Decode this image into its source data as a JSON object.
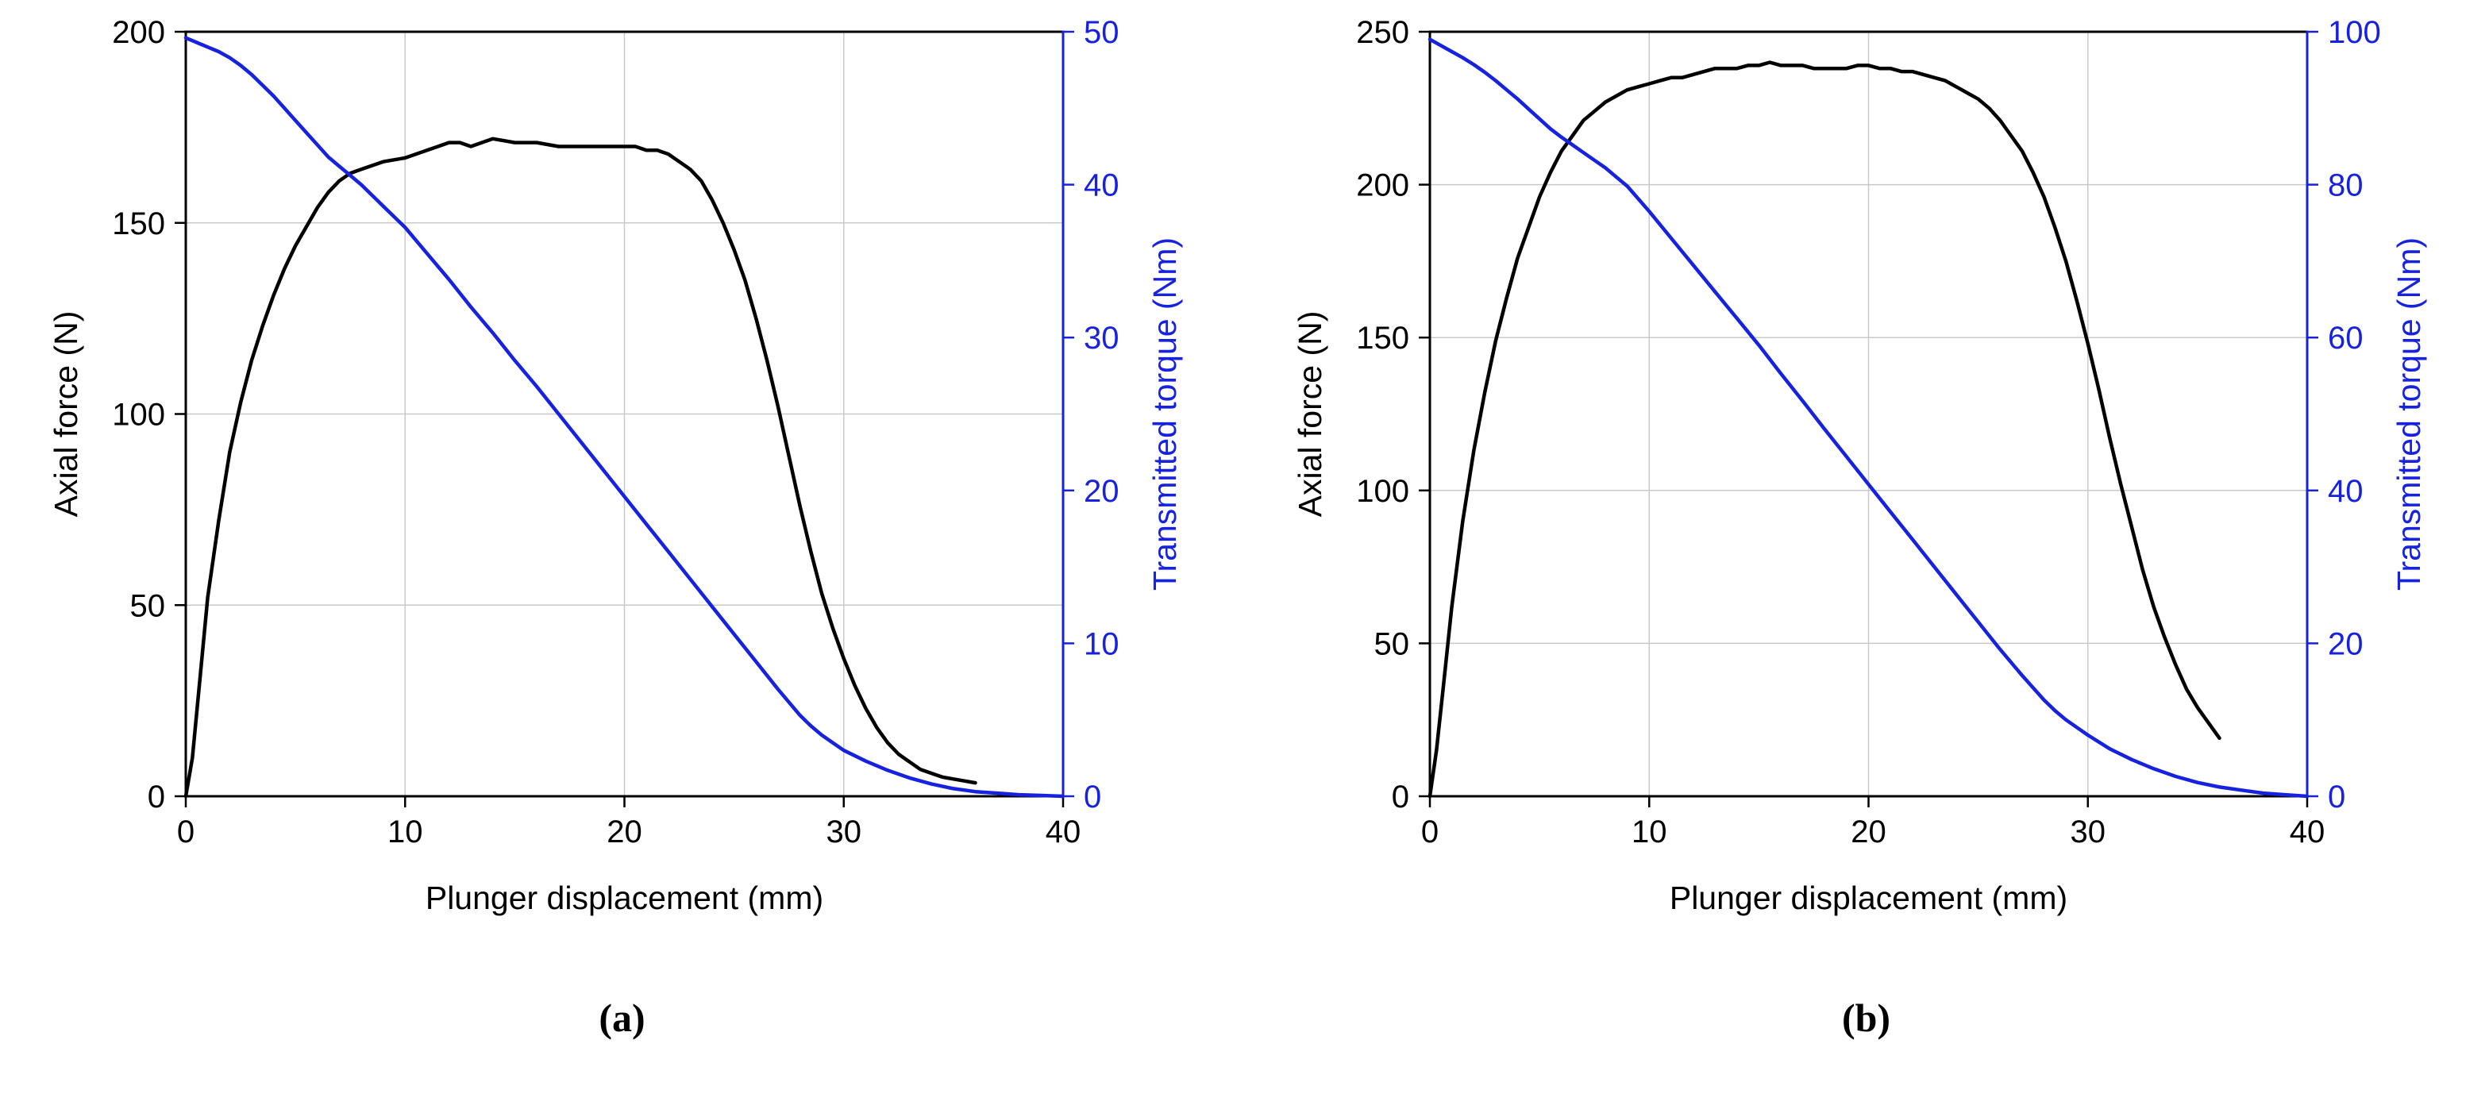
{
  "figure": {
    "background": "#ffffff",
    "grid_color": "#c9c9c9",
    "frame_color": "#000000"
  },
  "chart_data": [
    {
      "type": "line",
      "caption": "(a)",
      "title": "",
      "xlabel": "Plunger displacement (mm)",
      "ylabel_left": "Axial force (N)",
      "ylabel_right": "Transmitted torque (Nm)",
      "x_range": [
        0,
        40
      ],
      "x_ticks": [
        0,
        10,
        20,
        30,
        40
      ],
      "y_left_range": [
        0,
        200
      ],
      "y_left_ticks": [
        0,
        50,
        100,
        150,
        200
      ],
      "y_right_range": [
        0,
        50
      ],
      "y_right_ticks": [
        0,
        10,
        20,
        30,
        40,
        50
      ],
      "grid": true,
      "legend": "none",
      "colors": {
        "force": "#000000",
        "torque": "#1622e0",
        "grid": "#c9c9c9"
      },
      "series": [
        {
          "name": "Axial force",
          "axis": "left",
          "color": "#000000",
          "points": [
            [
              0,
              0
            ],
            [
              0.3,
              10
            ],
            [
              0.6,
              28
            ],
            [
              1,
              52
            ],
            [
              1.5,
              72
            ],
            [
              2,
              90
            ],
            [
              2.5,
              103
            ],
            [
              3,
              114
            ],
            [
              3.5,
              123
            ],
            [
              4,
              131
            ],
            [
              4.5,
              138
            ],
            [
              5,
              144
            ],
            [
              5.5,
              149
            ],
            [
              6,
              154
            ],
            [
              6.5,
              158
            ],
            [
              7,
              161
            ],
            [
              7.5,
              163
            ],
            [
              8,
              164
            ],
            [
              9,
              166
            ],
            [
              10,
              167
            ],
            [
              11,
              169
            ],
            [
              11.5,
              170
            ],
            [
              12,
              171
            ],
            [
              12.5,
              171
            ],
            [
              13,
              170
            ],
            [
              13.5,
              171
            ],
            [
              14,
              172
            ],
            [
              15,
              171
            ],
            [
              16,
              171
            ],
            [
              17,
              170
            ],
            [
              18,
              170
            ],
            [
              19,
              170
            ],
            [
              20,
              170
            ],
            [
              20.5,
              170
            ],
            [
              21,
              169
            ],
            [
              21.5,
              169
            ],
            [
              22,
              168
            ],
            [
              22.5,
              166
            ],
            [
              23,
              164
            ],
            [
              23.5,
              161
            ],
            [
              24,
              156
            ],
            [
              24.5,
              150
            ],
            [
              25,
              143
            ],
            [
              25.5,
              135
            ],
            [
              26,
              125
            ],
            [
              26.5,
              114
            ],
            [
              27,
              102
            ],
            [
              27.5,
              89
            ],
            [
              28,
              76
            ],
            [
              28.5,
              64
            ],
            [
              29,
              53
            ],
            [
              29.5,
              44
            ],
            [
              30,
              36
            ],
            [
              30.5,
              29
            ],
            [
              31,
              23
            ],
            [
              31.5,
              18
            ],
            [
              32,
              14
            ],
            [
              32.5,
              11
            ],
            [
              33,
              9
            ],
            [
              33.5,
              7
            ],
            [
              34,
              6
            ],
            [
              34.5,
              5
            ],
            [
              35,
              4.5
            ],
            [
              35.5,
              4
            ],
            [
              36,
              3.5
            ]
          ]
        },
        {
          "name": "Transmitted torque",
          "axis": "right",
          "color": "#1622e0",
          "points": [
            [
              0,
              49.6
            ],
            [
              0.5,
              49.3
            ],
            [
              1,
              49
            ],
            [
              1.5,
              48.7
            ],
            [
              2,
              48.3
            ],
            [
              2.5,
              47.8
            ],
            [
              3,
              47.2
            ],
            [
              3.5,
              46.5
            ],
            [
              4,
              45.8
            ],
            [
              4.5,
              45
            ],
            [
              5,
              44.2
            ],
            [
              5.5,
              43.4
            ],
            [
              6,
              42.6
            ],
            [
              6.5,
              41.8
            ],
            [
              7,
              41.2
            ],
            [
              7.5,
              40.6
            ],
            [
              8,
              40
            ],
            [
              9,
              38.6
            ],
            [
              10,
              37.2
            ],
            [
              11,
              35.5
            ],
            [
              12,
              33.8
            ],
            [
              13,
              32
            ],
            [
              14,
              30.3
            ],
            [
              15,
              28.5
            ],
            [
              16,
              26.8
            ],
            [
              17,
              25
            ],
            [
              18,
              23.2
            ],
            [
              19,
              21.4
            ],
            [
              20,
              19.6
            ],
            [
              21,
              17.8
            ],
            [
              22,
              16
            ],
            [
              23,
              14.2
            ],
            [
              24,
              12.4
            ],
            [
              25,
              10.6
            ],
            [
              26,
              8.8
            ],
            [
              27,
              7
            ],
            [
              28,
              5.3
            ],
            [
              28.5,
              4.6
            ],
            [
              29,
              4
            ],
            [
              29.5,
              3.5
            ],
            [
              30,
              3
            ],
            [
              31,
              2.3
            ],
            [
              32,
              1.7
            ],
            [
              33,
              1.2
            ],
            [
              34,
              0.8
            ],
            [
              35,
              0.5
            ],
            [
              36,
              0.3
            ],
            [
              37,
              0.2
            ],
            [
              38,
              0.1
            ],
            [
              39,
              0.05
            ],
            [
              40,
              0
            ]
          ]
        }
      ]
    },
    {
      "type": "line",
      "caption": "(b)",
      "title": "",
      "xlabel": "Plunger displacement (mm)",
      "ylabel_left": "Axial force (N)",
      "ylabel_right": "Transmitted torque (Nm)",
      "x_range": [
        0,
        40
      ],
      "x_ticks": [
        0,
        10,
        20,
        30,
        40
      ],
      "y_left_range": [
        0,
        250
      ],
      "y_left_ticks": [
        0,
        50,
        100,
        150,
        200,
        250
      ],
      "y_right_range": [
        0,
        100
      ],
      "y_right_ticks": [
        0,
        20,
        40,
        60,
        80,
        100
      ],
      "grid": true,
      "legend": "none",
      "colors": {
        "force": "#000000",
        "torque": "#1622e0",
        "grid": "#c9c9c9"
      },
      "series": [
        {
          "name": "Axial force",
          "axis": "left",
          "color": "#000000",
          "points": [
            [
              0,
              0
            ],
            [
              0.3,
              15
            ],
            [
              0.6,
              35
            ],
            [
              1,
              62
            ],
            [
              1.5,
              90
            ],
            [
              2,
              113
            ],
            [
              2.5,
              132
            ],
            [
              3,
              149
            ],
            [
              3.5,
              163
            ],
            [
              4,
              176
            ],
            [
              4.5,
              186
            ],
            [
              5,
              196
            ],
            [
              5.5,
              204
            ],
            [
              6,
              211
            ],
            [
              6.5,
              216
            ],
            [
              7,
              221
            ],
            [
              7.5,
              224
            ],
            [
              8,
              227
            ],
            [
              8.5,
              229
            ],
            [
              9,
              231
            ],
            [
              9.5,
              232
            ],
            [
              10,
              233
            ],
            [
              10.5,
              234
            ],
            [
              11,
              235
            ],
            [
              11.5,
              235
            ],
            [
              12,
              236
            ],
            [
              12.5,
              237
            ],
            [
              13,
              238
            ],
            [
              13.5,
              238
            ],
            [
              14,
              238
            ],
            [
              14.5,
              239
            ],
            [
              15,
              239
            ],
            [
              15.5,
              240
            ],
            [
              16,
              239
            ],
            [
              16.5,
              239
            ],
            [
              17,
              239
            ],
            [
              17.5,
              238
            ],
            [
              18,
              238
            ],
            [
              18.5,
              238
            ],
            [
              19,
              238
            ],
            [
              19.5,
              239
            ],
            [
              20,
              239
            ],
            [
              20.5,
              238
            ],
            [
              21,
              238
            ],
            [
              21.5,
              237
            ],
            [
              22,
              237
            ],
            [
              22.5,
              236
            ],
            [
              23,
              235
            ],
            [
              23.5,
              234
            ],
            [
              24,
              232
            ],
            [
              24.5,
              230
            ],
            [
              25,
              228
            ],
            [
              25.5,
              225
            ],
            [
              26,
              221
            ],
            [
              26.5,
              216
            ],
            [
              27,
              211
            ],
            [
              27.5,
              204
            ],
            [
              28,
              196
            ],
            [
              28.5,
              186
            ],
            [
              29,
              175
            ],
            [
              29.5,
              162
            ],
            [
              30,
              148
            ],
            [
              30.5,
              133
            ],
            [
              31,
              117
            ],
            [
              31.5,
              102
            ],
            [
              32,
              88
            ],
            [
              32.5,
              74
            ],
            [
              33,
              62
            ],
            [
              33.5,
              52
            ],
            [
              34,
              43
            ],
            [
              34.5,
              35
            ],
            [
              35,
              29
            ],
            [
              35.5,
              24
            ],
            [
              36,
              19
            ]
          ]
        },
        {
          "name": "Transmitted torque",
          "axis": "right",
          "color": "#1622e0",
          "points": [
            [
              0,
              99
            ],
            [
              0.5,
              98.2
            ],
            [
              1,
              97.4
            ],
            [
              1.5,
              96.6
            ],
            [
              2,
              95.7
            ],
            [
              2.5,
              94.7
            ],
            [
              3,
              93.6
            ],
            [
              3.5,
              92.4
            ],
            [
              4,
              91.2
            ],
            [
              4.5,
              89.9
            ],
            [
              5,
              88.6
            ],
            [
              5.5,
              87.3
            ],
            [
              6,
              86.2
            ],
            [
              6.5,
              85.2
            ],
            [
              7,
              84.2
            ],
            [
              7.5,
              83.2
            ],
            [
              8,
              82.2
            ],
            [
              9,
              79.8
            ],
            [
              10,
              76.5
            ],
            [
              11,
              73
            ],
            [
              12,
              69.5
            ],
            [
              13,
              66
            ],
            [
              14,
              62.5
            ],
            [
              15,
              59
            ],
            [
              16,
              55.3
            ],
            [
              17,
              51.7
            ],
            [
              18,
              48
            ],
            [
              19,
              44.4
            ],
            [
              20,
              40.8
            ],
            [
              21,
              37.2
            ],
            [
              22,
              33.6
            ],
            [
              23,
              30
            ],
            [
              24,
              26.4
            ],
            [
              25,
              22.8
            ],
            [
              26,
              19.2
            ],
            [
              27,
              15.8
            ],
            [
              28,
              12.6
            ],
            [
              28.5,
              11.2
            ],
            [
              29,
              10
            ],
            [
              29.5,
              9
            ],
            [
              30,
              8
            ],
            [
              31,
              6.2
            ],
            [
              32,
              4.8
            ],
            [
              33,
              3.6
            ],
            [
              34,
              2.6
            ],
            [
              35,
              1.8
            ],
            [
              36,
              1.2
            ],
            [
              37,
              0.8
            ],
            [
              38,
              0.4
            ],
            [
              39,
              0.2
            ],
            [
              40,
              0
            ]
          ]
        }
      ]
    }
  ]
}
